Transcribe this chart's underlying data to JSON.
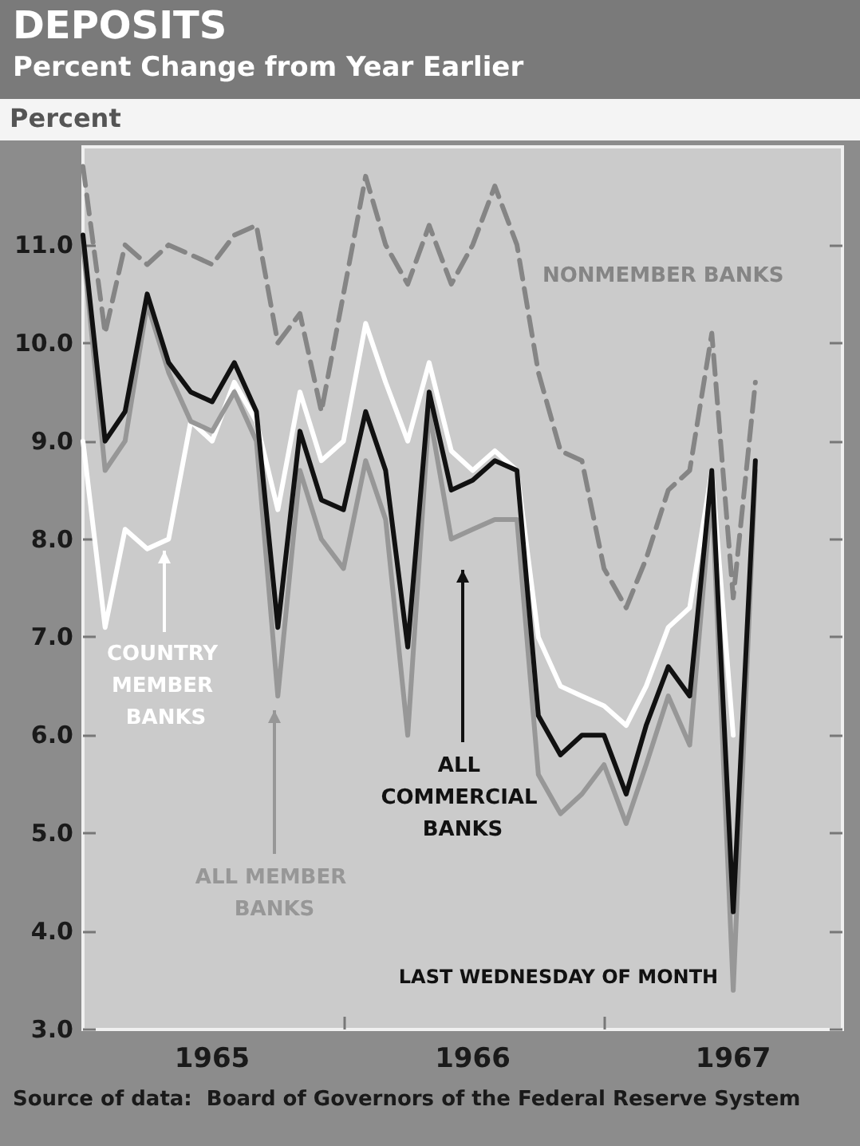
{
  "chart_data": {
    "type": "line",
    "title": "DEPOSITS",
    "subtitle": "Percent Change from Year Earlier",
    "ylabel": "Percent",
    "x": [
      "1965-01",
      "1965-02",
      "1965-03",
      "1965-04",
      "1965-05",
      "1965-06",
      "1965-07",
      "1965-08",
      "1965-09",
      "1965-10",
      "1965-11",
      "1965-12",
      "1966-01",
      "1966-02",
      "1966-03",
      "1966-04",
      "1966-05",
      "1966-06",
      "1966-07",
      "1966-08",
      "1966-09",
      "1966-10",
      "1966-11",
      "1966-12",
      "1967-01",
      "1967-02",
      "1967-03",
      "1967-04",
      "1967-05",
      "1967-06",
      "1967-07",
      "1967-08"
    ],
    "series": [
      {
        "name": "NONMEMBER BANKS",
        "color": "#858585",
        "line_style": "dashed",
        "values": [
          11.8,
          10.1,
          11.0,
          10.8,
          11.0,
          10.9,
          10.8,
          11.1,
          11.2,
          10.0,
          10.3,
          9.3,
          10.5,
          11.7,
          11.0,
          10.6,
          11.2,
          10.6,
          11.0,
          11.6,
          11.0,
          9.7,
          8.9,
          8.8,
          7.7,
          7.3,
          7.8,
          8.5,
          8.7,
          10.1,
          7.4,
          9.6
        ]
      },
      {
        "name": "COUNTRY MEMBER BANKS",
        "color": "#ffffff",
        "values": [
          9.0,
          7.1,
          8.1,
          7.9,
          8.0,
          9.2,
          9.0,
          9.6,
          9.2,
          8.3,
          9.5,
          8.8,
          9.0,
          10.2,
          9.6,
          9.0,
          9.8,
          8.9,
          8.7,
          8.9,
          8.7,
          7.0,
          6.5,
          6.4,
          6.3,
          6.1,
          6.5,
          7.1,
          7.3,
          8.7,
          6.0,
          null
        ]
      },
      {
        "name": "ALL MEMBER BANKS",
        "color": "#979797",
        "values": [
          11.0,
          8.7,
          9.0,
          10.4,
          9.7,
          9.2,
          9.1,
          9.5,
          9.0,
          6.4,
          8.7,
          8.0,
          7.7,
          8.8,
          8.2,
          6.0,
          9.3,
          8.0,
          8.1,
          8.2,
          8.2,
          5.6,
          5.2,
          5.4,
          5.7,
          5.1,
          5.7,
          6.4,
          5.9,
          8.5,
          3.4,
          8.7
        ]
      },
      {
        "name": "ALL COMMERCIAL BANKS",
        "color": "#111111",
        "values": [
          11.1,
          9.0,
          9.3,
          10.5,
          9.8,
          9.5,
          9.4,
          9.8,
          9.3,
          7.1,
          9.1,
          8.4,
          8.3,
          9.3,
          8.7,
          6.9,
          9.5,
          8.5,
          8.6,
          8.8,
          8.7,
          6.2,
          5.8,
          6.0,
          6.0,
          5.4,
          6.1,
          6.7,
          6.4,
          8.7,
          4.2,
          8.8
        ]
      }
    ],
    "xlim": [
      "1965-01",
      "1967-12"
    ],
    "xticks": [
      {
        "value": "1965-07",
        "label": "1965"
      },
      {
        "value": "1966-01",
        "label": null
      },
      {
        "value": "1966-07",
        "label": "1966"
      },
      {
        "value": "1967-01",
        "label": null
      },
      {
        "value": "1967-07",
        "label": "1967"
      }
    ],
    "ylim": [
      3,
      12
    ],
    "yticks": [
      {
        "value": 3,
        "label": "3.0"
      },
      {
        "value": 4,
        "label": "4.0"
      },
      {
        "value": 5,
        "label": "5.0"
      },
      {
        "value": 6,
        "label": "6.0"
      },
      {
        "value": 7,
        "label": "7.0"
      },
      {
        "value": 8,
        "label": "8.0"
      },
      {
        "value": 9,
        "label": "9.0"
      },
      {
        "value": 10,
        "label": "10.0"
      },
      {
        "value": 11,
        "label": "11.0"
      }
    ],
    "annotations": [
      "LAST WEDNESDAY OF MONTH",
      "Source of data:  Board of Governors of the Federal Reserve System"
    ],
    "grid": false,
    "legend": false,
    "marker": "none"
  }
}
